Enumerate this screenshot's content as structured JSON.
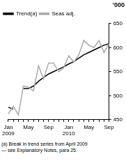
{
  "chart_data": {
    "type": "line",
    "y_label": "'000",
    "categories": [
      "Jan 2009",
      null,
      null,
      null,
      "May",
      null,
      null,
      null,
      "Sep",
      null,
      null,
      null,
      "Jan 2010",
      null,
      null,
      null,
      "May",
      null,
      null,
      null,
      "Sep"
    ],
    "series": [
      {
        "name": "Trend(a)",
        "color": "#000000",
        "values": [
          476,
          472,
          null,
          515,
          515,
          520,
          530,
          538,
          545,
          550,
          555,
          560,
          566,
          571,
          578,
          585,
          590,
          595,
          600,
          605,
          608
        ]
      },
      {
        "name": "Seas adj.",
        "color": "#aaaaaa",
        "values": [
          462,
          478,
          460,
          520,
          518,
          510,
          562,
          535,
          568,
          568,
          550,
          558,
          583,
          570,
          585,
          615,
          605,
          600,
          615,
          590,
          608
        ]
      }
    ],
    "ylim": [
      450,
      650
    ],
    "yticks": [
      450,
      500,
      550,
      600,
      650
    ],
    "grid": false,
    "legend": "top-left",
    "annotations": [
      "(a) Break in trend series from April 2009",
      "— see Explanatory Notes, para 25."
    ]
  }
}
